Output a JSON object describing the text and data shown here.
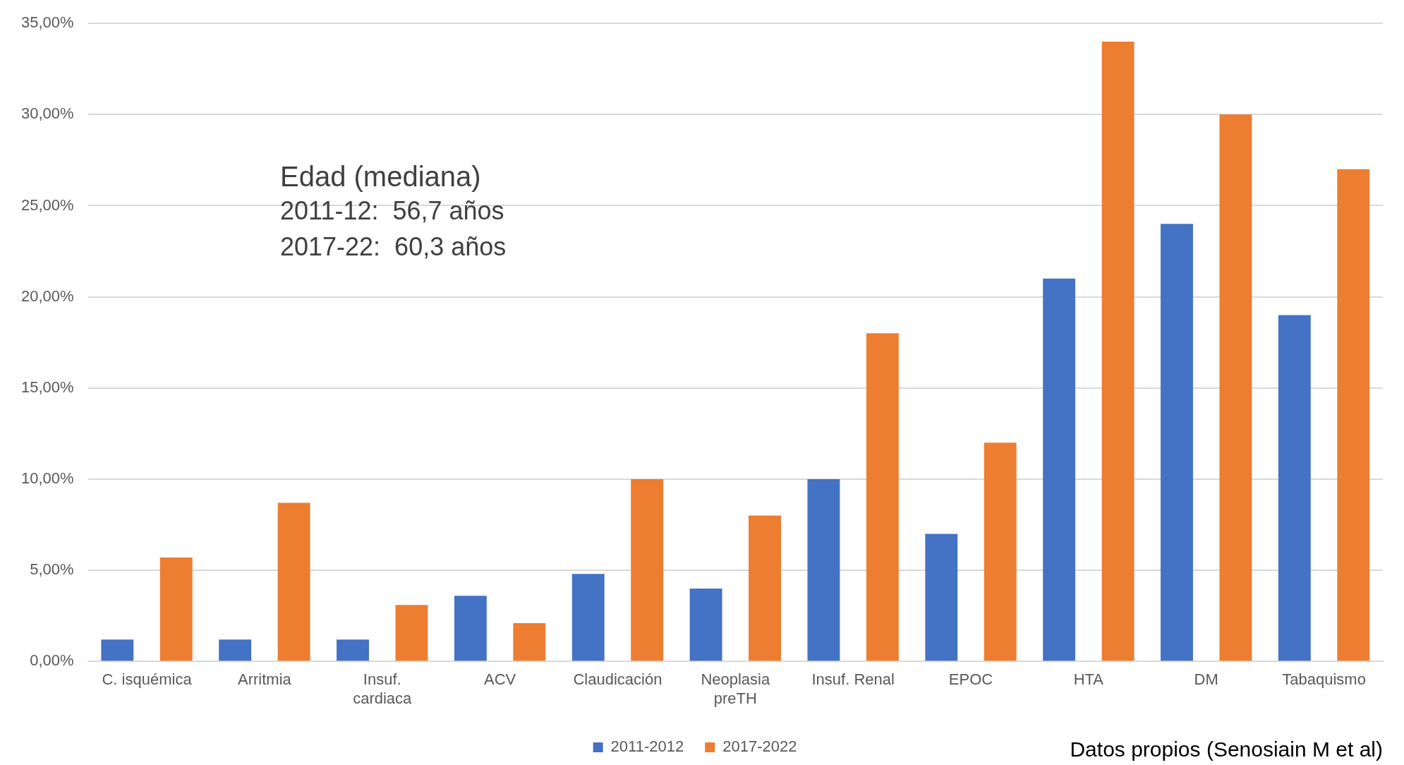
{
  "chart_data": {
    "type": "bar",
    "categories": [
      "C. isquémica",
      "Arritmia",
      "Insuf. cardiaca",
      "ACV",
      "Claudicación",
      "Neoplasia preTH",
      "Insuf. Renal",
      "EPOC",
      "HTA",
      "DM",
      "Tabaquismo"
    ],
    "series": [
      {
        "name": "2011-2012",
        "color": "#4472c4",
        "values": [
          1.2,
          1.2,
          1.2,
          3.6,
          4.8,
          4.0,
          10,
          7,
          21,
          24,
          19
        ]
      },
      {
        "name": "2017-2022",
        "color": "#ed7d31",
        "values": [
          5.7,
          8.7,
          3.1,
          2.1,
          10,
          8,
          18,
          12,
          34,
          30,
          27
        ]
      }
    ],
    "ylim": [
      0,
      35
    ],
    "yticks": [
      {
        "value": 0,
        "label": "0,00%"
      },
      {
        "value": 5,
        "label": "5,00%"
      },
      {
        "value": 10,
        "label": "10,00%"
      },
      {
        "value": 15,
        "label": "15,00%"
      },
      {
        "value": 20,
        "label": "20,00%"
      },
      {
        "value": 25,
        "label": "25,00%"
      },
      {
        "value": 30,
        "label": "30,00%"
      },
      {
        "value": 35,
        "label": "35,00%"
      }
    ],
    "grid": "y",
    "legend": "bottom",
    "annotations": [
      "Edad (mediana)",
      "2011-12:  56,7 años",
      "2017-22:  60,3 años",
      "Datos propios (Senosiain M et al)"
    ]
  }
}
